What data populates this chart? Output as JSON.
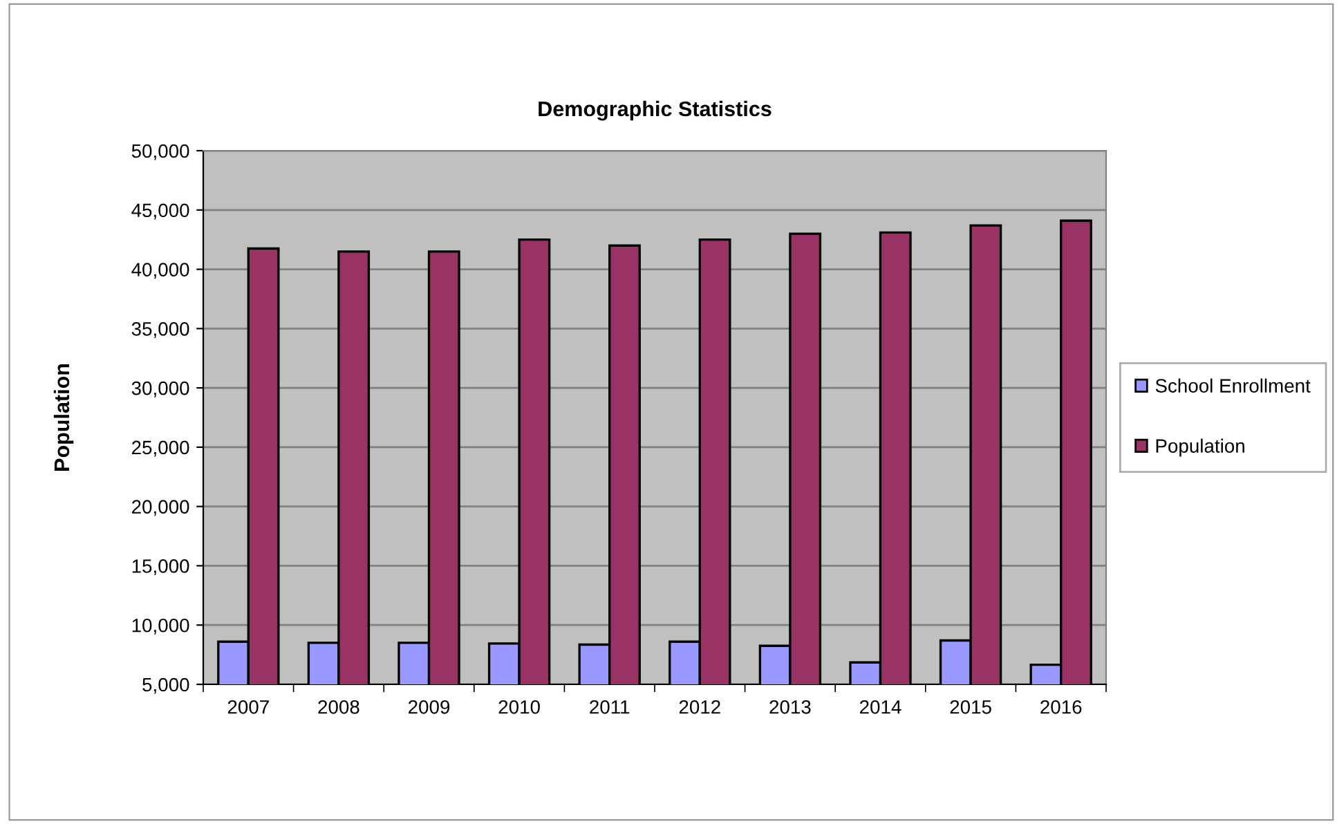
{
  "chart_data": {
    "type": "bar",
    "title": "Demographic Statistics",
    "ylabel": "Population",
    "categories": [
      "2007",
      "2008",
      "2009",
      "2010",
      "2011",
      "2012",
      "2013",
      "2014",
      "2015",
      "2016"
    ],
    "series": [
      {
        "name": "School Enrollment",
        "color": "#9999ff",
        "values": [
          8600,
          8500,
          8500,
          8450,
          8350,
          8600,
          8250,
          6850,
          8700,
          6650
        ]
      },
      {
        "name": "Population",
        "color": "#993366",
        "values": [
          41750,
          41500,
          41500,
          42500,
          42000,
          42500,
          43000,
          43100,
          43700,
          44100
        ]
      }
    ],
    "ylim": [
      5000,
      50000
    ],
    "yticks": [
      {
        "value": 5000,
        "label": "5,000"
      },
      {
        "value": 10000,
        "label": "10,000"
      },
      {
        "value": 15000,
        "label": "15,000"
      },
      {
        "value": 20000,
        "label": "20,000"
      },
      {
        "value": 25000,
        "label": "25,000"
      },
      {
        "value": 30000,
        "label": "30,000"
      },
      {
        "value": 35000,
        "label": "35,000"
      },
      {
        "value": 40000,
        "label": "40,000"
      },
      {
        "value": 45000,
        "label": "45,000"
      },
      {
        "value": 50000,
        "label": "50,000"
      }
    ],
    "grid": "y",
    "legend": "right"
  }
}
